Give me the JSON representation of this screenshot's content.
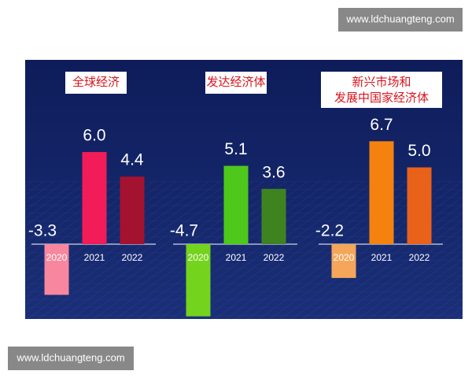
{
  "watermarks": [
    "www.ldchuangteng.com",
    "www.ldchuangteng.com"
  ],
  "chart_data": [
    {
      "type": "bar",
      "title": [
        "全球经济"
      ],
      "categories": [
        "2020",
        "2021",
        "2022"
      ],
      "values": [
        -3.3,
        6.0,
        4.4
      ],
      "value_labels": [
        "-3.3",
        "6.0",
        "4.4"
      ],
      "colors": [
        "#f8869e",
        "#f21c58",
        "#a3132f"
      ]
    },
    {
      "type": "bar",
      "title": [
        "发达经济体"
      ],
      "categories": [
        "2020",
        "2021",
        "2022"
      ],
      "values": [
        -4.7,
        5.1,
        3.6
      ],
      "value_labels": [
        "-4.7",
        "5.1",
        "3.6"
      ],
      "colors": [
        "#74d31c",
        "#4ec81a",
        "#3f8320"
      ]
    },
    {
      "type": "bar",
      "title": [
        "新兴市场和",
        "发展中国家经济体"
      ],
      "categories": [
        "2020",
        "2021",
        "2022"
      ],
      "values": [
        -2.2,
        6.7,
        5.0
      ],
      "value_labels": [
        "-2.2",
        "6.7",
        "5.0"
      ],
      "colors": [
        "#f5a65a",
        "#f5820f",
        "#e8621a"
      ]
    }
  ]
}
